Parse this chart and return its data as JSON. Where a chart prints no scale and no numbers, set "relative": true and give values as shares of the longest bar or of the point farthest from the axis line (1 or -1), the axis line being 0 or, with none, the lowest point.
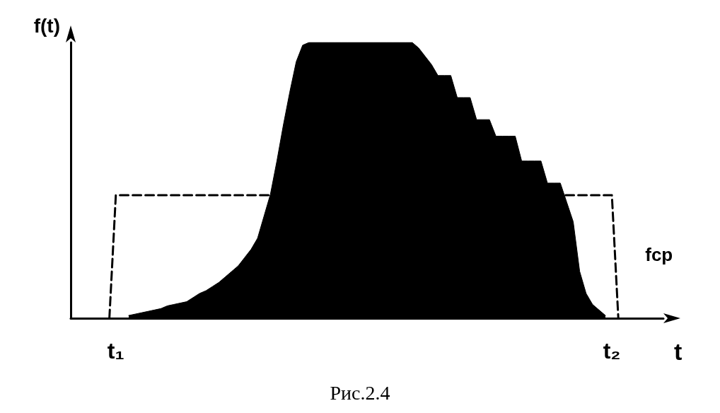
{
  "chart_data": {
    "type": "area",
    "relative": true,
    "xlabel": "t",
    "ylabel": "f(t)",
    "annotations": [
      "Рис.2.4"
    ],
    "grid": false,
    "legend": false,
    "marker": "none",
    "categories": [
      null,
      null,
      null,
      null,
      null,
      null,
      null,
      "t₁",
      null,
      null,
      null,
      null,
      null,
      null,
      null,
      null,
      null,
      null,
      null,
      null,
      null,
      null,
      null,
      null,
      null,
      null,
      null,
      null,
      null,
      null,
      null,
      null,
      null,
      null,
      null,
      null,
      null,
      null,
      null,
      null,
      null,
      null,
      null,
      null,
      null,
      null,
      null,
      null,
      null,
      null,
      null,
      null,
      null,
      null,
      null,
      null,
      null,
      null,
      null,
      null,
      null,
      null,
      null,
      null,
      null,
      null,
      null,
      null,
      null,
      null,
      null,
      null,
      null,
      null,
      null,
      null,
      null,
      null,
      null,
      null,
      null,
      null,
      null,
      null,
      "t₂",
      null,
      null,
      null,
      null,
      null,
      null,
      null,
      null
    ],
    "series": [
      {
        "type": "area",
        "color": "#000000",
        "values": [
          null,
          null,
          null,
          null,
          null,
          null,
          null,
          null,
          null,
          0.01,
          0.015,
          0.02,
          0.025,
          0.03,
          0.035,
          0.045,
          0.05,
          0.055,
          0.06,
          0.075,
          0.09,
          0.1,
          0.115,
          0.13,
          0.15,
          0.17,
          0.19,
          0.22,
          0.25,
          0.29,
          0.37,
          0.45,
          0.57,
          0.7,
          0.82,
          0.93,
          0.99,
          1,
          1,
          1,
          1,
          1,
          1,
          1,
          1,
          1,
          1,
          1,
          1,
          1,
          1,
          1,
          1,
          1,
          0.98,
          0.95,
          0.92,
          0.88,
          0.88,
          0.88,
          0.8,
          0.8,
          0.8,
          0.72,
          0.72,
          0.72,
          0.66,
          0.66,
          0.66,
          0.66,
          0.57,
          0.57,
          0.57,
          0.57,
          0.49,
          0.49,
          0.49,
          0.42,
          0.35,
          0.17,
          0.09,
          0.05,
          0.03,
          0.01,
          null,
          null,
          null,
          null,
          null,
          null,
          null,
          null,
          null
        ]
      },
      {
        "type": "line",
        "name": "fcp",
        "color": "#000000",
        "line_style": "dashed",
        "values": [
          null,
          null,
          null,
          null,
          null,
          null,
          0,
          0.446,
          0.446,
          0.446,
          0.446,
          0.446,
          0.446,
          0.446,
          0.446,
          0.446,
          0.446,
          0.446,
          0.446,
          0.446,
          0.446,
          0.446,
          0.446,
          0.446,
          0.446,
          0.446,
          0.446,
          0.446,
          0.446,
          0.446,
          0.446,
          0.446,
          0.446,
          0.446,
          0.446,
          0.446,
          0.446,
          0.446,
          0.446,
          0.446,
          0.446,
          0.446,
          0.446,
          0.446,
          0.446,
          0.446,
          0.446,
          0.446,
          0.446,
          0.446,
          0.446,
          0.446,
          0.446,
          0.446,
          0.446,
          0.446,
          0.446,
          0.446,
          0.446,
          0.446,
          0.446,
          0.446,
          0.446,
          0.446,
          0.446,
          0.446,
          0.446,
          0.446,
          0.446,
          0.446,
          0.446,
          0.446,
          0.446,
          0.446,
          0.446,
          0.446,
          0.446,
          0.446,
          0.446,
          0.446,
          0.446,
          0.446,
          0.446,
          0.446,
          0.446,
          0,
          null,
          null,
          null,
          null,
          null,
          null,
          null
        ]
      }
    ]
  }
}
